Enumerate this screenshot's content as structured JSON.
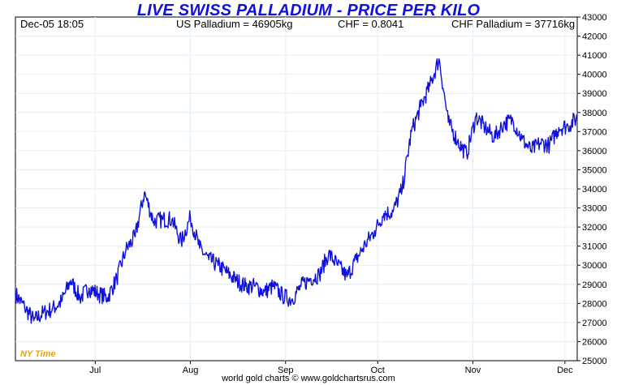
{
  "chart_data": {
    "type": "line",
    "title": "LIVE SWISS PALLADIUM - PRICE PER KILO",
    "header": {
      "timestamp": "Dec-05  18:05",
      "us_palladium": "US Palladium = 46905kg",
      "chf_rate": "CHF = 0.8041",
      "chf_palladium": "CHF Palladium = 37716kg"
    },
    "xlabel": "",
    "ylabel": "",
    "x_tick_labels": [
      "Jul",
      "Aug",
      "Sep",
      "Oct",
      "Nov",
      "Dec"
    ],
    "y_ticks": [
      25000,
      26000,
      27000,
      28000,
      29000,
      30000,
      31000,
      32000,
      33000,
      34000,
      35000,
      36000,
      37000,
      38000,
      39000,
      40000,
      41000,
      42000,
      43000
    ],
    "ylim": [
      25000,
      43000
    ],
    "xlim": [
      "Jun-05",
      "Dec-05"
    ],
    "grid": true,
    "y_axis_side": "right",
    "series": [
      {
        "color": "#1010e0",
        "x": [
          "Jun-05",
          "Jun-08",
          "Jun-11",
          "Jun-14",
          "Jun-17",
          "Jun-20",
          "Jun-23",
          "Jun-26",
          "Jun-29",
          "Jul-02",
          "Jul-05",
          "Jul-08",
          "Jul-11",
          "Jul-14",
          "Jul-17",
          "Jul-20",
          "Jul-23",
          "Jul-26",
          "Jul-29",
          "Aug-01",
          "Aug-04",
          "Aug-07",
          "Aug-10",
          "Aug-13",
          "Aug-16",
          "Aug-19",
          "Aug-22",
          "Aug-25",
          "Aug-28",
          "Aug-31",
          "Sep-03",
          "Sep-06",
          "Sep-09",
          "Sep-12",
          "Sep-15",
          "Sep-18",
          "Sep-21",
          "Sep-24",
          "Sep-27",
          "Sep-30",
          "Oct-03",
          "Oct-06",
          "Oct-09",
          "Oct-12",
          "Oct-15",
          "Oct-18",
          "Oct-21",
          "Oct-24",
          "Oct-27",
          "Oct-30",
          "Nov-02",
          "Nov-05",
          "Nov-08",
          "Nov-11",
          "Nov-14",
          "Nov-17",
          "Nov-20",
          "Nov-23",
          "Nov-26",
          "Nov-29",
          "Dec-02",
          "Dec-05"
        ],
        "values": [
          28500,
          27800,
          27100,
          27500,
          27700,
          28100,
          29200,
          28300,
          28800,
          28500,
          28300,
          29300,
          30800,
          31500,
          33800,
          32300,
          32400,
          32400,
          31200,
          32500,
          30900,
          30300,
          30000,
          29600,
          29200,
          28900,
          28900,
          28600,
          28900,
          28400,
          28200,
          28900,
          29300,
          29500,
          30600,
          30000,
          29400,
          30300,
          31100,
          31800,
          32700,
          32800,
          34000,
          37000,
          38300,
          39400,
          40800,
          37500,
          36500,
          35800,
          37800,
          37200,
          36700,
          37400,
          37600,
          36600,
          36000,
          36400,
          36300,
          37200,
          37300,
          37716
        ]
      }
    ],
    "annotations": [
      "NY Time"
    ],
    "footer": "world gold charts © www.goldchartsrus.com"
  }
}
